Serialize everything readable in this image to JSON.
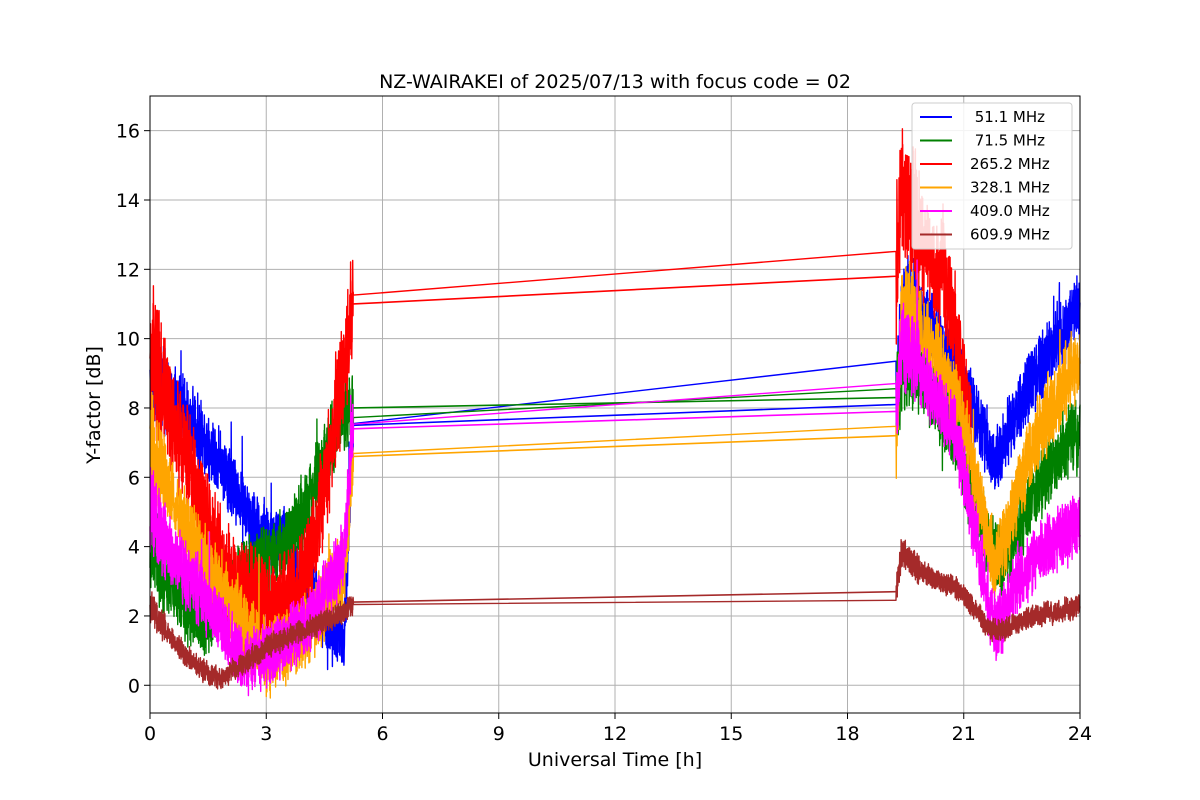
{
  "chart_data": {
    "type": "line",
    "title": "NZ-WAIRAKEI of 2025/07/13 with focus code = 02",
    "xlabel": "Universal Time [h]",
    "ylabel": "Y-factor [dB]",
    "xlim": [
      0,
      24
    ],
    "ylim": [
      -0.8,
      17
    ],
    "xticks": [
      0,
      3,
      6,
      9,
      12,
      15,
      18,
      21,
      24
    ],
    "yticks": [
      0,
      2,
      4,
      6,
      8,
      10,
      12,
      14,
      16
    ],
    "grid": true,
    "legend_position": "top-right",
    "series": [
      {
        "name": " 51.1 MHz",
        "color": "#0000ff",
        "x": [
          0,
          0.2,
          0.4,
          0.6,
          0.8,
          1.0,
          1.2,
          1.4,
          1.6,
          1.8,
          2.0,
          2.2,
          2.4,
          2.6,
          2.8,
          3.0,
          3.2,
          3.4,
          3.6,
          3.8,
          4.0,
          4.2,
          4.4,
          4.6,
          4.8,
          5.0,
          5.25,
          19.25,
          19.4,
          19.6,
          19.8,
          20.0,
          20.2,
          20.4,
          20.6,
          20.8,
          21.0,
          21.2,
          21.4,
          21.6,
          21.8,
          22.0,
          22.2,
          22.4,
          22.6,
          22.8,
          23.0,
          23.2,
          23.4,
          23.6,
          23.8,
          24.0
        ],
        "y": [
          8.9,
          8.6,
          8.4,
          8.2,
          8.0,
          7.8,
          7.4,
          7.1,
          6.8,
          6.5,
          6.0,
          5.6,
          5.1,
          4.7,
          4.5,
          4.3,
          4.1,
          4.4,
          4.0,
          3.2,
          2.8,
          2.5,
          2.2,
          1.8,
          1.5,
          1.3,
          7.5,
          8.1,
          11.0,
          11.2,
          10.8,
          10.5,
          10.2,
          9.9,
          9.6,
          9.3,
          8.6,
          8.1,
          7.6,
          7.0,
          6.4,
          6.9,
          7.5,
          8.0,
          8.4,
          8.8,
          9.2,
          9.6,
          10.0,
          10.3,
          10.6,
          10.8
        ]
      },
      {
        "name": " 71.5 MHz",
        "color": "#008000",
        "x": [
          0,
          0.2,
          0.4,
          0.6,
          0.8,
          1.0,
          1.2,
          1.4,
          1.6,
          1.8,
          2.0,
          2.2,
          2.4,
          2.6,
          2.8,
          3.0,
          3.2,
          3.4,
          3.6,
          3.8,
          4.0,
          4.2,
          4.4,
          4.6,
          4.8,
          5.0,
          5.25,
          19.25,
          19.4,
          19.6,
          19.8,
          20.0,
          20.2,
          20.4,
          20.6,
          20.8,
          21.0,
          21.2,
          21.4,
          21.6,
          21.8,
          22.0,
          22.2,
          22.4,
          22.6,
          22.8,
          23.0,
          23.2,
          23.4,
          23.6,
          23.8,
          24.0
        ],
        "y": [
          4.0,
          3.6,
          3.1,
          2.8,
          2.5,
          2.2,
          2.0,
          1.8,
          2.1,
          2.4,
          2.6,
          2.9,
          3.1,
          3.3,
          3.5,
          3.6,
          3.8,
          4.0,
          4.3,
          4.6,
          5.0,
          5.6,
          6.2,
          6.8,
          7.4,
          7.9,
          8.0,
          8.3,
          9.0,
          9.4,
          9.2,
          8.8,
          8.4,
          8.0,
          7.6,
          7.1,
          6.2,
          5.4,
          4.8,
          4.3,
          3.8,
          3.6,
          4.0,
          4.5,
          5.0,
          5.5,
          5.9,
          6.3,
          6.6,
          6.9,
          7.1,
          7.3
        ]
      },
      {
        "name": "265.2 MHz",
        "color": "#ff0000",
        "x": [
          0,
          0.2,
          0.4,
          0.6,
          0.8,
          1.0,
          1.2,
          1.4,
          1.6,
          1.8,
          2.0,
          2.2,
          2.4,
          2.6,
          2.8,
          3.0,
          3.2,
          3.4,
          3.6,
          3.8,
          4.0,
          4.2,
          4.4,
          4.6,
          4.8,
          5.0,
          5.25,
          19.25,
          19.4,
          19.6,
          19.8,
          20.0,
          20.2,
          20.4,
          20.6,
          20.8,
          21.0,
          21.1,
          21.2
        ],
        "y": [
          9.6,
          9.0,
          8.2,
          7.6,
          7.0,
          6.4,
          5.6,
          4.8,
          4.2,
          3.6,
          3.0,
          2.8,
          2.6,
          2.4,
          2.3,
          2.2,
          2.1,
          2.2,
          2.4,
          2.7,
          3.1,
          3.9,
          5.0,
          6.4,
          7.9,
          9.1,
          11.0,
          11.8,
          14.6,
          13.8,
          13.2,
          12.6,
          12.2,
          11.8,
          11.2,
          10.4,
          8.6,
          7.8,
          7.2
        ]
      },
      {
        "name": "328.1 MHz",
        "color": "#ffa500",
        "x": [
          0,
          0.2,
          0.4,
          0.6,
          0.8,
          1.0,
          1.2,
          1.4,
          1.6,
          1.8,
          2.0,
          2.2,
          2.4,
          2.6,
          2.8,
          3.0,
          3.2,
          3.4,
          3.6,
          3.8,
          4.0,
          4.2,
          4.4,
          4.6,
          4.8,
          5.0,
          5.25,
          19.25,
          19.4,
          19.6,
          19.8,
          20.0,
          20.2,
          20.4,
          20.6,
          20.8,
          21.0,
          21.2,
          21.4,
          21.6,
          21.8,
          22.0,
          22.2,
          22.4,
          22.6,
          22.8,
          23.0,
          23.2,
          23.4,
          23.6,
          23.8,
          24.0
        ],
        "y": [
          7.0,
          6.4,
          5.9,
          5.4,
          4.9,
          4.4,
          4.0,
          3.6,
          3.2,
          2.9,
          2.5,
          2.2,
          1.7,
          1.3,
          1.0,
          0.9,
          0.8,
          1.0,
          1.2,
          1.4,
          1.6,
          1.9,
          2.2,
          2.6,
          3.0,
          3.4,
          6.6,
          7.2,
          10.6,
          10.9,
          10.5,
          10.1,
          9.7,
          9.3,
          8.9,
          8.4,
          7.4,
          6.4,
          5.4,
          4.4,
          3.4,
          4.0,
          4.8,
          5.6,
          6.3,
          6.9,
          7.4,
          7.9,
          8.3,
          8.7,
          9.0,
          9.3
        ]
      },
      {
        "name": "409.0 MHz",
        "color": "#ff00ff",
        "x": [
          0,
          0.2,
          0.4,
          0.6,
          0.8,
          1.0,
          1.2,
          1.4,
          1.6,
          1.8,
          2.0,
          2.2,
          2.4,
          2.6,
          2.8,
          3.0,
          3.2,
          3.4,
          3.6,
          3.8,
          4.0,
          4.2,
          4.4,
          4.6,
          4.8,
          5.0,
          5.25,
          19.25,
          19.4,
          19.6,
          19.8,
          20.0,
          20.2,
          20.4,
          20.6,
          20.8,
          21.0,
          21.2,
          21.4,
          21.6,
          21.8,
          22.0,
          22.2,
          22.4,
          22.6,
          22.8,
          23.0,
          23.2,
          23.4,
          23.6,
          23.8,
          24.0
        ],
        "y": [
          5.0,
          4.6,
          4.2,
          3.8,
          3.4,
          3.1,
          2.8,
          2.5,
          2.2,
          1.8,
          1.4,
          1.0,
          0.8,
          0.7,
          0.8,
          0.9,
          1.0,
          1.2,
          1.4,
          1.6,
          1.8,
          2.0,
          2.4,
          2.8,
          3.3,
          3.8,
          7.4,
          7.9,
          9.8,
          9.6,
          9.2,
          8.8,
          8.4,
          8.0,
          7.6,
          7.2,
          6.2,
          5.0,
          3.8,
          2.6,
          1.6,
          2.0,
          2.6,
          3.0,
          3.4,
          3.6,
          3.8,
          4.0,
          4.2,
          4.4,
          4.6,
          4.8
        ]
      },
      {
        "name": "609.9 MHz",
        "color": "#a52a2a",
        "x": [
          0,
          0.2,
          0.4,
          0.6,
          0.8,
          1.0,
          1.2,
          1.4,
          1.6,
          1.8,
          2.0,
          2.2,
          2.4,
          2.6,
          2.8,
          3.0,
          3.2,
          3.4,
          3.6,
          3.8,
          4.0,
          4.2,
          4.4,
          4.6,
          4.8,
          5.0,
          5.25,
          19.25,
          19.4,
          19.6,
          19.8,
          20.0,
          20.2,
          20.4,
          20.6,
          20.8,
          21.0,
          21.2,
          21.4,
          21.6,
          21.8,
          22.0,
          22.2,
          22.4,
          22.6,
          22.8,
          23.0,
          23.2,
          23.4,
          23.6,
          23.8,
          24.0
        ],
        "y": [
          2.3,
          1.9,
          1.6,
          1.3,
          1.0,
          0.8,
          0.6,
          0.4,
          0.3,
          0.2,
          0.3,
          0.5,
          0.6,
          0.8,
          0.9,
          1.1,
          1.2,
          1.3,
          1.4,
          1.5,
          1.6,
          1.7,
          1.8,
          1.9,
          2.0,
          2.1,
          2.4,
          2.7,
          3.9,
          3.6,
          3.4,
          3.2,
          3.1,
          3.0,
          2.9,
          2.8,
          2.6,
          2.3,
          2.0,
          1.7,
          1.6,
          1.6,
          1.7,
          1.8,
          1.9,
          2.0,
          2.0,
          2.1,
          2.1,
          2.2,
          2.2,
          2.3
        ]
      }
    ]
  }
}
